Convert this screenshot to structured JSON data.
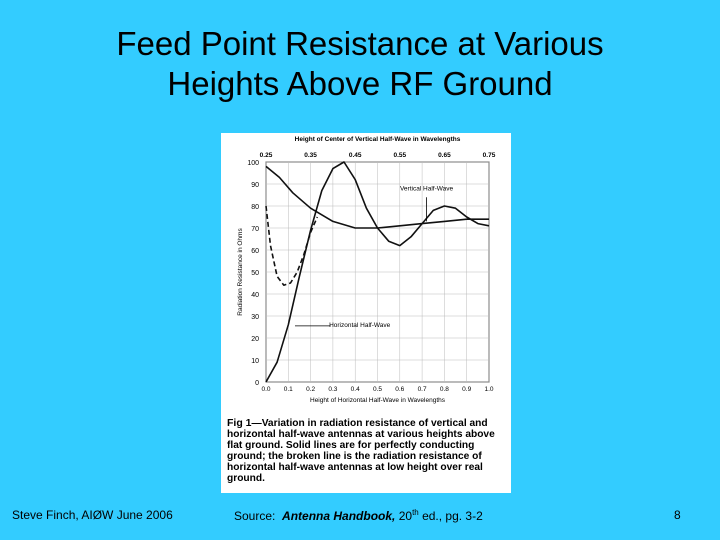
{
  "slide": {
    "title_line1": "Feed Point Resistance at Various",
    "title_line2": "Heights Above RF Ground",
    "background": "#33ccff"
  },
  "footer": {
    "author": "Steve Finch, AIØW  June 2006",
    "source_prefix": "Source:  ",
    "book": "Antenna Handbook,",
    "edition_num": " 20",
    "edition_sup": "th",
    "edition_rest": " ed., pg. 3-2",
    "page_number": "8"
  },
  "figure": {
    "caption_label": "Fig 1",
    "caption_text": "—Variation in radiation resistance of vertical and horizontal half-wave antennas at various heights above flat ground. Solid lines are for perfectly conducting ground; the broken line is the radiation resistance of horizontal half-wave antennas at low height over real ground."
  },
  "chart_data": {
    "type": "line",
    "title": "",
    "xlabel": "Height of Horizontal Half-Wave in Wavelengths",
    "x2label": "Height of Center of Vertical Half-Wave in Wavelengths",
    "ylabel": "Radiation Resistance in Ohms",
    "xlim": [
      0,
      1.0
    ],
    "x2lim": [
      0.25,
      0.75
    ],
    "ylim": [
      0,
      100
    ],
    "x_ticks": [
      "0.0",
      "0.1",
      "0.2",
      "0.3",
      "0.4",
      "0.5",
      "0.6",
      "0.7",
      "0.8",
      "0.9",
      "1.0"
    ],
    "x2_ticks": [
      "0.25",
      "0.35",
      "0.45",
      "0.55",
      "0.65",
      "0.75"
    ],
    "y_ticks": [
      "0",
      "10",
      "20",
      "30",
      "40",
      "50",
      "60",
      "70",
      "80",
      "90",
      "100"
    ],
    "annotations": [
      "Vertical Half-Wave",
      "Horizontal Half-Wave"
    ],
    "series": [
      {
        "name": "Horizontal Half-Wave",
        "style": "solid",
        "x": [
          0.0,
          0.05,
          0.1,
          0.15,
          0.2,
          0.25,
          0.3,
          0.35,
          0.4,
          0.45,
          0.5,
          0.55,
          0.6,
          0.65,
          0.7,
          0.75,
          0.8,
          0.85,
          0.9,
          0.95,
          1.0
        ],
        "y": [
          0,
          9,
          26,
          48,
          69,
          87,
          97,
          100,
          92,
          79,
          70,
          64,
          62,
          66,
          72,
          78,
          80,
          79,
          75,
          72,
          71
        ]
      },
      {
        "name": "Horizontal Half-Wave (real ground)",
        "style": "dashed",
        "x": [
          0.0,
          0.02,
          0.05,
          0.08,
          0.11,
          0.14,
          0.17,
          0.2,
          0.23
        ],
        "y": [
          80,
          62,
          48,
          44,
          45,
          50,
          58,
          68,
          75
        ]
      },
      {
        "name": "Vertical Half-Wave",
        "style": "solid",
        "x2": [
          0.25,
          0.28,
          0.31,
          0.35,
          0.4,
          0.45,
          0.5,
          0.55,
          0.6,
          0.65,
          0.7,
          0.75
        ],
        "y": [
          98,
          93,
          86,
          79,
          73,
          70,
          70,
          71,
          72,
          73,
          74,
          74
        ]
      }
    ],
    "grid": true,
    "legend": "none"
  }
}
